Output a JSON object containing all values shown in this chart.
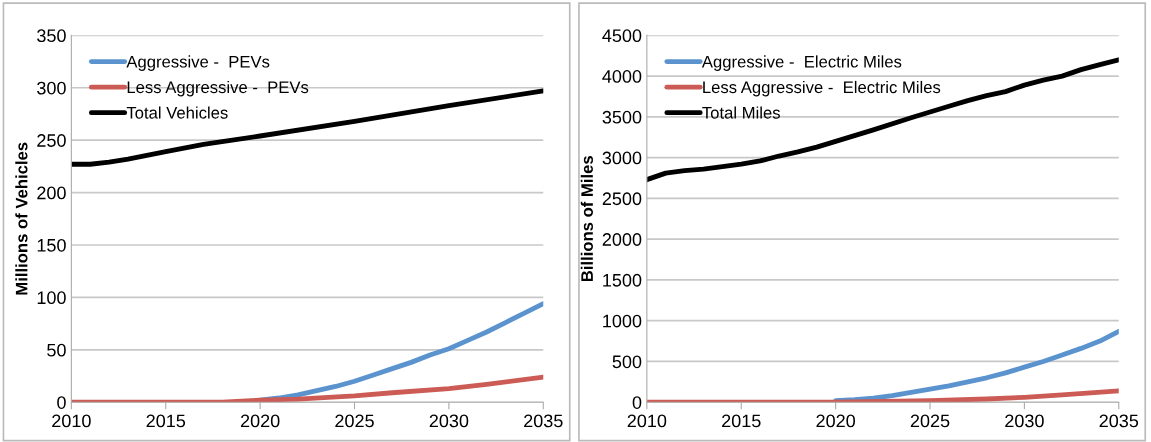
{
  "chart_data": [
    {
      "type": "line",
      "ylabel": "Millions of Vehicles",
      "xlim": [
        2010,
        2035
      ],
      "xticks": [
        2010,
        2015,
        2020,
        2025,
        2030,
        2035
      ],
      "ylim": [
        0,
        350
      ],
      "yticks": [
        0,
        50,
        100,
        150,
        200,
        250,
        300,
        350
      ],
      "grid": "y",
      "legend": "top left",
      "marker": "none",
      "line_style": "solid",
      "series": [
        {
          "name": "Aggressive -  PEVs",
          "color": "#5b93cf",
          "x": [
            2020,
            2021,
            2022,
            2023,
            2024,
            2025,
            2026,
            2027,
            2028,
            2029,
            2030,
            2031,
            2032,
            2033,
            2034,
            2035
          ],
          "values": [
            2,
            4,
            7,
            11,
            15,
            20,
            26,
            32,
            38,
            45,
            51,
            59,
            67,
            76,
            85,
            94
          ]
        },
        {
          "name": "Less Aggressive -  PEVs",
          "color": "#cc5b55",
          "x": [
            2010,
            2018,
            2020,
            2022,
            2025,
            2027,
            2030,
            2032,
            2035
          ],
          "values": [
            0,
            0,
            2,
            3,
            6,
            9,
            13,
            17,
            24
          ]
        },
        {
          "name": "Total Vehicles",
          "color": "#000000",
          "x": [
            2010,
            2011,
            2012,
            2013,
            2015,
            2017,
            2020,
            2025,
            2030,
            2035
          ],
          "values": [
            227,
            227,
            229,
            232,
            239,
            246,
            254,
            268,
            283,
            297
          ]
        }
      ]
    },
    {
      "type": "line",
      "ylabel": "Billions of Miles",
      "xlim": [
        2010,
        2035
      ],
      "xticks": [
        2010,
        2015,
        2020,
        2025,
        2030,
        2035
      ],
      "ylim": [
        0,
        4500
      ],
      "yticks": [
        0,
        500,
        1000,
        1500,
        2000,
        2500,
        3000,
        3500,
        4000,
        4500
      ],
      "grid": "y",
      "legend": "top left",
      "marker": "none",
      "line_style": "solid",
      "series": [
        {
          "name": "Aggressive -  Electric Miles",
          "color": "#5b93cf",
          "x": [
            2020,
            2021,
            2022,
            2023,
            2024,
            2025,
            2026,
            2027,
            2028,
            2029,
            2030,
            2031,
            2032,
            2033,
            2034,
            2035
          ],
          "values": [
            20,
            30,
            50,
            80,
            120,
            160,
            200,
            250,
            300,
            360,
            430,
            500,
            580,
            660,
            750,
            870
          ]
        },
        {
          "name": "Less Aggressive -  Electric Miles",
          "color": "#cc5b55",
          "x": [
            2010,
            2020,
            2025,
            2028,
            2030,
            2032,
            2035
          ],
          "values": [
            0,
            0,
            20,
            40,
            60,
            90,
            140
          ]
        },
        {
          "name": "Total Miles",
          "color": "#000000",
          "x": [
            2010,
            2011,
            2012,
            2013,
            2014,
            2015,
            2016,
            2017,
            2018,
            2019,
            2020,
            2022,
            2024,
            2025,
            2026,
            2027,
            2028,
            2029,
            2030,
            2031,
            2032,
            2033,
            2034,
            2035
          ],
          "values": [
            2730,
            2810,
            2840,
            2860,
            2890,
            2920,
            2960,
            3020,
            3070,
            3130,
            3200,
            3340,
            3490,
            3560,
            3630,
            3700,
            3760,
            3810,
            3890,
            3950,
            4000,
            4080,
            4140,
            4200
          ]
        }
      ]
    }
  ]
}
